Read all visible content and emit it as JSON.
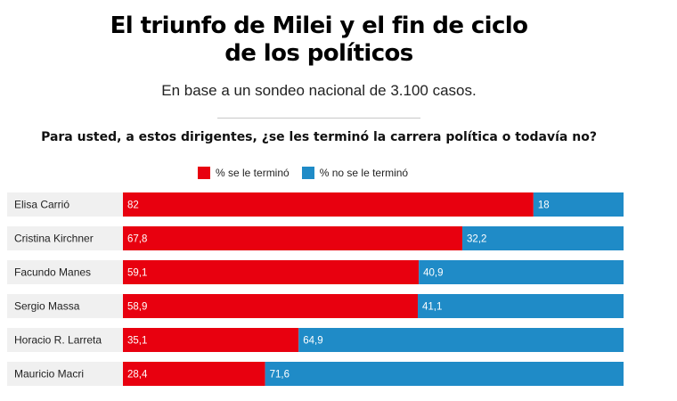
{
  "header": {
    "title_line1": "El triunfo de Milei y el fin de ciclo",
    "title_line2": "de los políticos",
    "subtitle": "En base a un sondeo nacional de 3.100 casos.",
    "question": "Para usted, a estos dirigentes, ¿se les terminó la carrera política o todavía no?"
  },
  "colors": {
    "ended": "#e8000f",
    "not_ended": "#1f8bc7",
    "row_band": "#f0f0f0"
  },
  "chart_data": {
    "type": "bar",
    "orientation": "horizontal",
    "stacked": true,
    "categories": [
      "Elisa Carrió",
      "Cristina Kirchner",
      "Facundo Manes",
      "Sergio Massa",
      "Horacio R. Larreta",
      "Mauricio Macri"
    ],
    "series": [
      {
        "name": "% se le terminó",
        "values": [
          82,
          67.8,
          59.1,
          58.9,
          35.1,
          28.4
        ],
        "labels": [
          "82",
          "67,8",
          "59,1",
          "58,9",
          "35,1",
          "28,4"
        ]
      },
      {
        "name": "% no se le terminó",
        "values": [
          18,
          32.2,
          40.9,
          41.1,
          64.9,
          71.6
        ],
        "labels": [
          "18",
          "32,2",
          "40,9",
          "41,1",
          "64,9",
          "71,6"
        ]
      }
    ],
    "xlim": [
      0,
      100
    ],
    "legend": "top-center"
  }
}
